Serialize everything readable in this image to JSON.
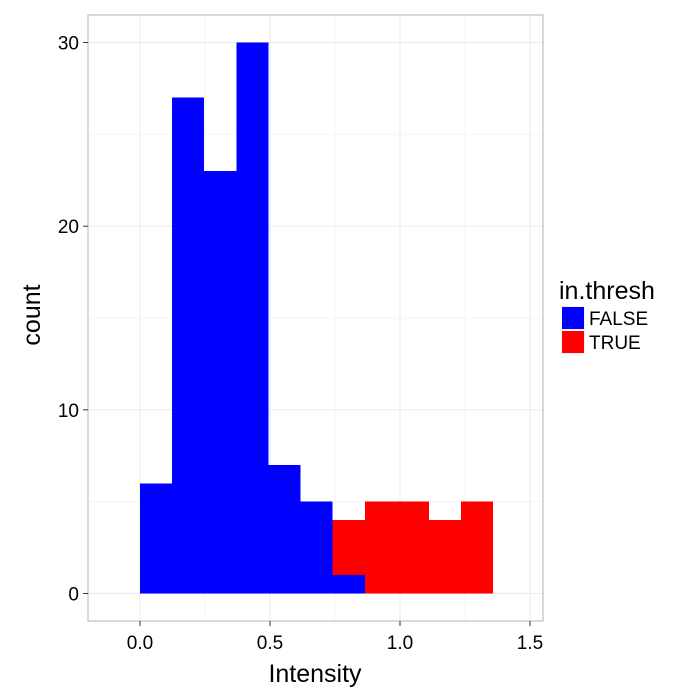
{
  "chart_data": {
    "type": "bar",
    "subtype": "stacked-histogram",
    "xlabel": "Intensity",
    "ylabel": "count",
    "xlim": [
      -0.2,
      1.55
    ],
    "ylim": [
      -1.5,
      31.5
    ],
    "x_ticks": [
      0.0,
      0.5,
      1.0,
      1.5
    ],
    "x_tick_labels": [
      "0.0",
      "0.5",
      "1.0",
      "1.5"
    ],
    "y_ticks": [
      0,
      10,
      20,
      30
    ],
    "y_tick_labels": [
      "0",
      "10",
      "20",
      "30"
    ],
    "grid": true,
    "legend": {
      "title": "in.thresh",
      "position": "right"
    },
    "bin_edges": [
      0.0,
      0.1235,
      0.247,
      0.3705,
      0.494,
      0.6175,
      0.741,
      0.8645,
      0.988,
      1.1115,
      1.235,
      1.3585
    ],
    "series": [
      {
        "name": "FALSE",
        "color": "#0000ff",
        "values": [
          6,
          27,
          23,
          30,
          7,
          5,
          1,
          0,
          0,
          0,
          0
        ]
      },
      {
        "name": "TRUE",
        "color": "#ff0000",
        "values": [
          0,
          0,
          0,
          0,
          0,
          0,
          3,
          5,
          5,
          4,
          5
        ]
      }
    ],
    "colors": {
      "panel_border": "#b3b3b3",
      "grid_major": "#ebebeb",
      "grid_minor": "#f5f5f5",
      "tick": "#333333"
    }
  }
}
